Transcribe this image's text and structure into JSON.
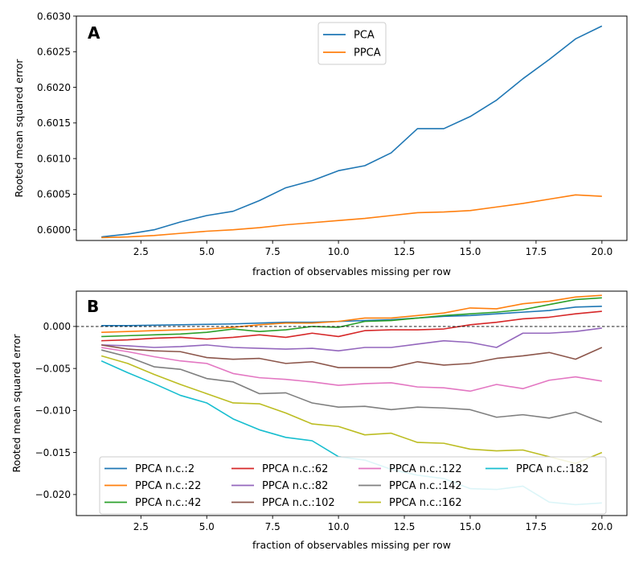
{
  "chart_data": [
    {
      "panel_label": "A",
      "type": "line",
      "xlabel": "fraction of observables missing per row",
      "ylabel": "Rooted mean squared error",
      "xlim": [
        0.05,
        20.95
      ],
      "ylim": [
        0.59985,
        0.603
      ],
      "xticks": [
        2.5,
        5.0,
        7.5,
        10.0,
        12.5,
        15.0,
        17.5,
        20.0
      ],
      "xtick_labels": [
        "2.5",
        "5.0",
        "7.5",
        "10.0",
        "12.5",
        "15.0",
        "17.5",
        "20.0"
      ],
      "yticks": [
        0.6,
        0.6005,
        0.601,
        0.6015,
        0.602,
        0.6025,
        0.603
      ],
      "ytick_labels": [
        "0.6000",
        "0.6005",
        "0.6010",
        "0.6015",
        "0.6020",
        "0.6025",
        "0.6030"
      ],
      "legend_placement": "upper-center",
      "legend_columns": 1,
      "grid": false,
      "x": [
        1,
        2,
        3,
        4,
        5,
        6,
        7,
        8,
        9,
        10,
        11,
        12,
        13,
        14,
        15,
        16,
        17,
        18,
        19,
        20
      ],
      "series": [
        {
          "name": "PCA",
          "color": "#1f77b4",
          "values": [
            0.5999,
            0.59994,
            0.6,
            0.60011,
            0.6002,
            0.60026,
            0.60041,
            0.60059,
            0.60069,
            0.60083,
            0.6009,
            0.60108,
            0.60142,
            0.60142,
            0.60159,
            0.60182,
            0.60212,
            0.60239,
            0.60268,
            0.60286
          ]
        },
        {
          "name": "PPCA",
          "color": "#ff7f0e",
          "values": [
            0.59989,
            0.5999,
            0.59992,
            0.59995,
            0.59998,
            0.6,
            0.60003,
            0.60007,
            0.6001,
            0.60013,
            0.60016,
            0.6002,
            0.60024,
            0.60025,
            0.60027,
            0.60032,
            0.60037,
            0.60043,
            0.60049,
            0.60047
          ]
        }
      ]
    },
    {
      "panel_label": "B",
      "type": "line",
      "xlabel": "fraction of observables missing per row",
      "ylabel": "Rooted mean squared error",
      "xlim": [
        0.05,
        20.95
      ],
      "ylim": [
        -0.0225,
        0.0042
      ],
      "xticks": [
        2.5,
        5.0,
        7.5,
        10.0,
        12.5,
        15.0,
        17.5,
        20.0
      ],
      "xtick_labels": [
        "2.5",
        "5.0",
        "7.5",
        "10.0",
        "12.5",
        "15.0",
        "17.5",
        "20.0"
      ],
      "yticks": [
        -0.02,
        -0.015,
        -0.01,
        -0.005,
        0.0
      ],
      "ytick_labels": [
        "−0.020",
        "−0.015",
        "−0.010",
        "−0.005",
        "0.000"
      ],
      "reference_line": {
        "y": 0.0,
        "style": "dashed",
        "color": "#000000"
      },
      "legend_placement": "lower-center",
      "legend_columns": 4,
      "grid": false,
      "x": [
        1,
        2,
        3,
        4,
        5,
        6,
        7,
        8,
        9,
        10,
        11,
        12,
        13,
        14,
        15,
        16,
        17,
        18,
        19,
        20
      ],
      "series": [
        {
          "name": "PPCA n.c.:2",
          "color": "#1f77b4",
          "values": [
            0.0001,
            0.0001,
            0.00015,
            0.0002,
            0.00025,
            0.0003,
            0.0004,
            0.0005,
            0.0005,
            0.0006,
            0.0007,
            0.0008,
            0.001,
            0.0012,
            0.0013,
            0.0015,
            0.0017,
            0.0019,
            0.0023,
            0.0024
          ]
        },
        {
          "name": "PPCA n.c.:22",
          "color": "#ff7f0e",
          "values": [
            -0.0007,
            -0.0006,
            -0.0005,
            -0.0004,
            -0.0003,
            -0.0001,
            0.0002,
            0.0004,
            0.0004,
            0.0006,
            0.001,
            0.001,
            0.0013,
            0.0016,
            0.0022,
            0.0021,
            0.0027,
            0.003,
            0.0035,
            0.0037
          ]
        },
        {
          "name": "PPCA n.c.:42",
          "color": "#2ca02c",
          "values": [
            -0.0012,
            -0.0011,
            -0.001,
            -0.0009,
            -0.0007,
            -0.0003,
            -0.0006,
            -0.0004,
            0.0,
            -0.0001,
            0.0006,
            0.0007,
            0.001,
            0.0013,
            0.0015,
            0.0017,
            0.002,
            0.0026,
            0.0032,
            0.0034
          ]
        },
        {
          "name": "PPCA n.c.:62",
          "color": "#d62728",
          "values": [
            -0.0017,
            -0.0016,
            -0.0014,
            -0.0013,
            -0.0015,
            -0.0013,
            -0.001,
            -0.0013,
            -0.0008,
            -0.0012,
            -0.0005,
            -0.0004,
            -0.0004,
            -0.0003,
            0.0002,
            0.0005,
            0.0009,
            0.0011,
            0.0015,
            0.0018
          ]
        },
        {
          "name": "PPCA n.c.:82",
          "color": "#9467bd",
          "values": [
            -0.0022,
            -0.0023,
            -0.0025,
            -0.0024,
            -0.0022,
            -0.0025,
            -0.0026,
            -0.0027,
            -0.0026,
            -0.0029,
            -0.0025,
            -0.0025,
            -0.0021,
            -0.0017,
            -0.0019,
            -0.0025,
            -0.0008,
            -0.0008,
            -0.0006,
            -0.0002
          ]
        },
        {
          "name": "PPCA n.c.:102",
          "color": "#8c564b",
          "values": [
            -0.0022,
            -0.0027,
            -0.0029,
            -0.003,
            -0.0037,
            -0.0039,
            -0.0038,
            -0.0044,
            -0.0042,
            -0.0049,
            -0.0049,
            -0.0049,
            -0.0042,
            -0.0046,
            -0.0044,
            -0.0038,
            -0.0035,
            -0.0031,
            -0.0039,
            -0.0025
          ]
        },
        {
          "name": "PPCA n.c.:122",
          "color": "#e377c2",
          "values": [
            -0.0025,
            -0.003,
            -0.0036,
            -0.0041,
            -0.0044,
            -0.0056,
            -0.0061,
            -0.0063,
            -0.0066,
            -0.007,
            -0.0068,
            -0.0067,
            -0.0072,
            -0.0073,
            -0.0077,
            -0.0069,
            -0.0074,
            -0.0064,
            -0.006,
            -0.0065
          ]
        },
        {
          "name": "PPCA n.c.:142",
          "color": "#7f7f7f",
          "values": [
            -0.0028,
            -0.0036,
            -0.0048,
            -0.0051,
            -0.0062,
            -0.0066,
            -0.008,
            -0.0079,
            -0.0091,
            -0.0096,
            -0.0095,
            -0.0099,
            -0.0096,
            -0.0097,
            -0.0099,
            -0.0108,
            -0.0105,
            -0.0109,
            -0.0102,
            -0.0114
          ]
        },
        {
          "name": "PPCA n.c.:162",
          "color": "#bcbd22",
          "values": [
            -0.0035,
            -0.0044,
            -0.0057,
            -0.0069,
            -0.008,
            -0.0091,
            -0.0092,
            -0.0103,
            -0.0116,
            -0.0119,
            -0.0129,
            -0.0127,
            -0.0138,
            -0.0139,
            -0.0146,
            -0.0148,
            -0.0147,
            -0.0155,
            -0.0163,
            -0.015
          ]
        },
        {
          "name": "PPCA n.c.:182",
          "color": "#17becf",
          "values": [
            -0.0041,
            -0.0055,
            -0.0068,
            -0.0082,
            -0.0091,
            -0.011,
            -0.0123,
            -0.0132,
            -0.0136,
            -0.0155,
            -0.0159,
            -0.017,
            -0.0177,
            -0.0181,
            -0.0193,
            -0.0194,
            -0.019,
            -0.0209,
            -0.0212,
            -0.021
          ]
        }
      ]
    }
  ]
}
